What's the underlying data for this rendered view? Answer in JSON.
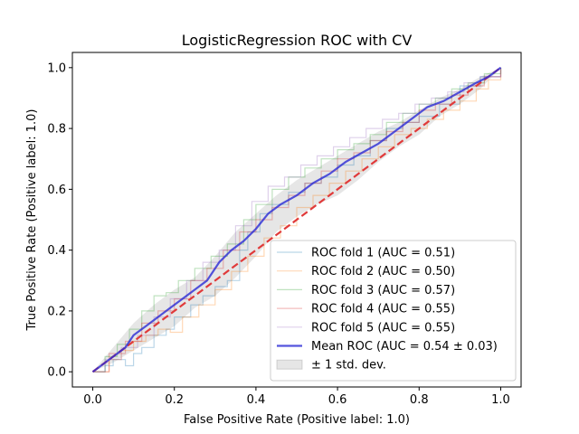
{
  "chart_data": {
    "type": "line",
    "title": "LogisticRegression ROC with CV",
    "xlabel": "False Positive Rate (Positive label: 1.0)",
    "ylabel": "True Positive Rate (Positive label: 1.0)",
    "xlim": [
      -0.05,
      1.05
    ],
    "ylim": [
      -0.05,
      1.05
    ],
    "xticks": [
      "0.0",
      "0.2",
      "0.4",
      "0.6",
      "0.8",
      "1.0"
    ],
    "yticks": [
      "0.0",
      "0.2",
      "0.4",
      "0.6",
      "0.8",
      "1.0"
    ],
    "grid": false,
    "legend_position": "lower-right",
    "chance_line": {
      "x": [
        0,
        1
      ],
      "y": [
        0,
        1
      ],
      "color": "#e03a3a",
      "style": "dashed"
    },
    "series": [
      {
        "name": "ROC fold 1 (AUC = 0.51)",
        "color": "#1f77b4",
        "opacity": 0.3,
        "x": [
          0,
          0.03,
          0.05,
          0.08,
          0.1,
          0.12,
          0.15,
          0.18,
          0.2,
          0.24,
          0.27,
          0.3,
          0.33,
          0.36,
          0.38,
          0.41,
          0.44,
          0.48,
          0.52,
          0.56,
          0.6,
          0.64,
          0.68,
          0.72,
          0.76,
          0.8,
          0.85,
          0.9,
          0.95,
          1.0
        ],
        "y": [
          0,
          0.02,
          0.04,
          0.02,
          0.06,
          0.08,
          0.12,
          0.14,
          0.18,
          0.22,
          0.25,
          0.28,
          0.3,
          0.4,
          0.46,
          0.52,
          0.55,
          0.59,
          0.62,
          0.64,
          0.68,
          0.71,
          0.76,
          0.8,
          0.82,
          0.84,
          0.88,
          0.94,
          0.97,
          1.0
        ]
      },
      {
        "name": "ROC fold 2 (AUC = 0.50)",
        "color": "#ff7f0e",
        "opacity": 0.3,
        "x": [
          0,
          0.04,
          0.07,
          0.1,
          0.13,
          0.16,
          0.19,
          0.22,
          0.26,
          0.3,
          0.34,
          0.38,
          0.42,
          0.46,
          0.5,
          0.54,
          0.58,
          0.62,
          0.66,
          0.7,
          0.74,
          0.78,
          0.82,
          0.86,
          0.9,
          0.94,
          0.97,
          1.0
        ],
        "y": [
          0,
          0.04,
          0.07,
          0.1,
          0.12,
          0.14,
          0.13,
          0.18,
          0.22,
          0.27,
          0.33,
          0.38,
          0.44,
          0.48,
          0.54,
          0.58,
          0.62,
          0.66,
          0.7,
          0.74,
          0.78,
          0.8,
          0.83,
          0.86,
          0.89,
          0.93,
          0.96,
          1.0
        ]
      },
      {
        "name": "ROC fold 3 (AUC = 0.57)",
        "color": "#2ca02c",
        "opacity": 0.3,
        "x": [
          0,
          0.03,
          0.06,
          0.09,
          0.12,
          0.15,
          0.18,
          0.21,
          0.25,
          0.29,
          0.33,
          0.37,
          0.4,
          0.44,
          0.48,
          0.52,
          0.56,
          0.6,
          0.64,
          0.68,
          0.72,
          0.76,
          0.8,
          0.84,
          0.88,
          0.92,
          0.96,
          1.0
        ],
        "y": [
          0,
          0.05,
          0.09,
          0.14,
          0.2,
          0.25,
          0.26,
          0.3,
          0.34,
          0.38,
          0.42,
          0.5,
          0.55,
          0.6,
          0.64,
          0.67,
          0.7,
          0.73,
          0.75,
          0.78,
          0.82,
          0.85,
          0.88,
          0.9,
          0.93,
          0.95,
          0.98,
          1.0
        ]
      },
      {
        "name": "ROC fold 4 (AUC = 0.55)",
        "color": "#d62728",
        "opacity": 0.3,
        "x": [
          0,
          0.04,
          0.08,
          0.12,
          0.16,
          0.2,
          0.24,
          0.28,
          0.32,
          0.36,
          0.4,
          0.44,
          0.48,
          0.52,
          0.56,
          0.6,
          0.64,
          0.68,
          0.72,
          0.76,
          0.8,
          0.84,
          0.88,
          0.92,
          0.96,
          1.0
        ],
        "y": [
          0,
          0.06,
          0.1,
          0.16,
          0.2,
          0.24,
          0.3,
          0.34,
          0.4,
          0.46,
          0.5,
          0.54,
          0.58,
          0.62,
          0.66,
          0.7,
          0.72,
          0.76,
          0.79,
          0.82,
          0.86,
          0.88,
          0.91,
          0.94,
          0.97,
          1.0
        ]
      },
      {
        "name": "ROC fold 5 (AUC = 0.55)",
        "color": "#9467bd",
        "opacity": 0.3,
        "x": [
          0,
          0.03,
          0.07,
          0.11,
          0.15,
          0.19,
          0.23,
          0.27,
          0.31,
          0.35,
          0.39,
          0.43,
          0.47,
          0.51,
          0.55,
          0.59,
          0.63,
          0.67,
          0.71,
          0.75,
          0.79,
          0.83,
          0.87,
          0.91,
          0.95,
          1.0
        ],
        "y": [
          0,
          0.04,
          0.08,
          0.12,
          0.18,
          0.24,
          0.3,
          0.36,
          0.4,
          0.48,
          0.56,
          0.61,
          0.64,
          0.68,
          0.71,
          0.74,
          0.77,
          0.8,
          0.83,
          0.85,
          0.88,
          0.9,
          0.92,
          0.95,
          0.97,
          1.0
        ]
      },
      {
        "name": "Mean ROC (AUC = 0.54 ± 0.03)",
        "color": "#2b2bd6",
        "opacity": 0.8,
        "width": 2.2,
        "x": [
          0,
          0.02,
          0.05,
          0.08,
          0.1,
          0.13,
          0.16,
          0.19,
          0.22,
          0.25,
          0.28,
          0.31,
          0.34,
          0.37,
          0.4,
          0.43,
          0.46,
          0.5,
          0.54,
          0.58,
          0.62,
          0.66,
          0.7,
          0.74,
          0.78,
          0.82,
          0.86,
          0.9,
          0.94,
          0.97,
          1.0
        ],
        "y": [
          0,
          0.02,
          0.05,
          0.08,
          0.12,
          0.15,
          0.18,
          0.21,
          0.24,
          0.27,
          0.3,
          0.36,
          0.4,
          0.43,
          0.47,
          0.52,
          0.55,
          0.58,
          0.62,
          0.65,
          0.69,
          0.72,
          0.75,
          0.79,
          0.83,
          0.87,
          0.89,
          0.92,
          0.95,
          0.97,
          1.0
        ]
      }
    ],
    "std_band": {
      "name": "± 1 std. dev.",
      "color": "#808080",
      "opacity": 0.2,
      "x": [
        0,
        0.05,
        0.1,
        0.15,
        0.2,
        0.25,
        0.3,
        0.35,
        0.4,
        0.45,
        0.5,
        0.55,
        0.6,
        0.65,
        0.7,
        0.75,
        0.8,
        0.85,
        0.9,
        0.95,
        1.0
      ],
      "upper": [
        0,
        0.08,
        0.16,
        0.22,
        0.27,
        0.31,
        0.38,
        0.46,
        0.52,
        0.58,
        0.63,
        0.67,
        0.71,
        0.75,
        0.79,
        0.82,
        0.86,
        0.9,
        0.93,
        0.97,
        1.0
      ],
      "lower": [
        0,
        0.03,
        0.07,
        0.11,
        0.15,
        0.21,
        0.25,
        0.31,
        0.38,
        0.46,
        0.51,
        0.55,
        0.58,
        0.63,
        0.69,
        0.74,
        0.78,
        0.84,
        0.88,
        0.93,
        1.0
      ]
    }
  }
}
